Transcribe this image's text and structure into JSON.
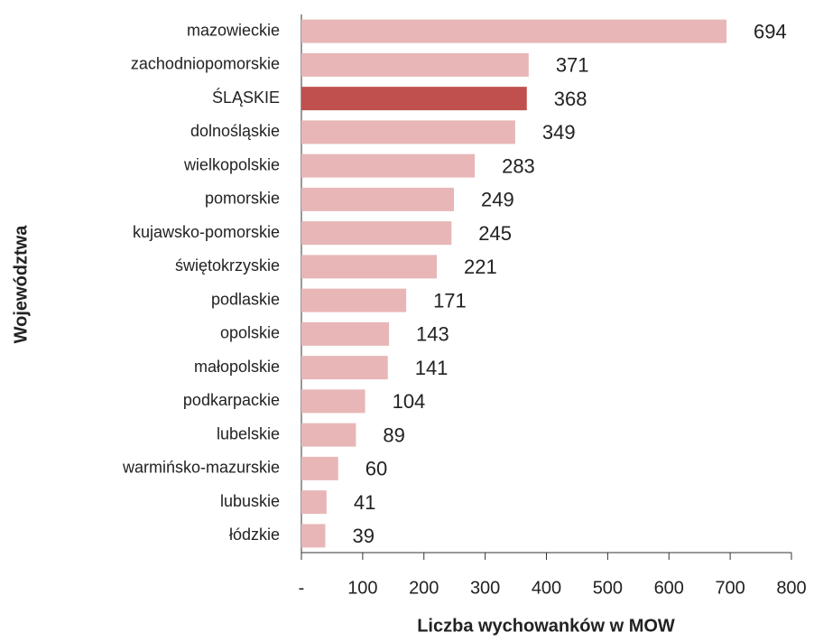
{
  "chart_data": {
    "type": "bar",
    "orientation": "horizontal",
    "categories": [
      "mazowieckie",
      "zachodniopomorskie",
      "ŚLĄSKIE",
      "dolnośląskie",
      "wielkopolskie",
      "pomorskie",
      "kujawsko-pomorskie",
      "świętokrzyskie",
      "podlaskie",
      "opolskie",
      "małopolskie",
      "podkarpackie",
      "lubelskie",
      "warmińsko-mazurskie",
      "lubuskie",
      "łódzkie"
    ],
    "values": [
      694,
      371,
      368,
      349,
      283,
      249,
      245,
      221,
      171,
      143,
      141,
      104,
      89,
      60,
      41,
      39
    ],
    "colors": [
      "#e8b6b6",
      "#e8b6b6",
      "#c0504d",
      "#e8b6b6",
      "#e8b6b6",
      "#e8b6b6",
      "#e8b6b6",
      "#e8b6b6",
      "#e8b6b6",
      "#e8b6b6",
      "#e8b6b6",
      "#e8b6b6",
      "#e8b6b6",
      "#e8b6b6",
      "#e8b6b6",
      "#e8b6b6"
    ],
    "xlim": [
      0,
      800
    ],
    "xticks": [
      {
        "value": 0,
        "label": "-"
      },
      100,
      200,
      300,
      400,
      500,
      600,
      700,
      800
    ],
    "xlabel": "Liczba wychowanków w MOW",
    "ylabel": "Województwa",
    "grid": false
  }
}
